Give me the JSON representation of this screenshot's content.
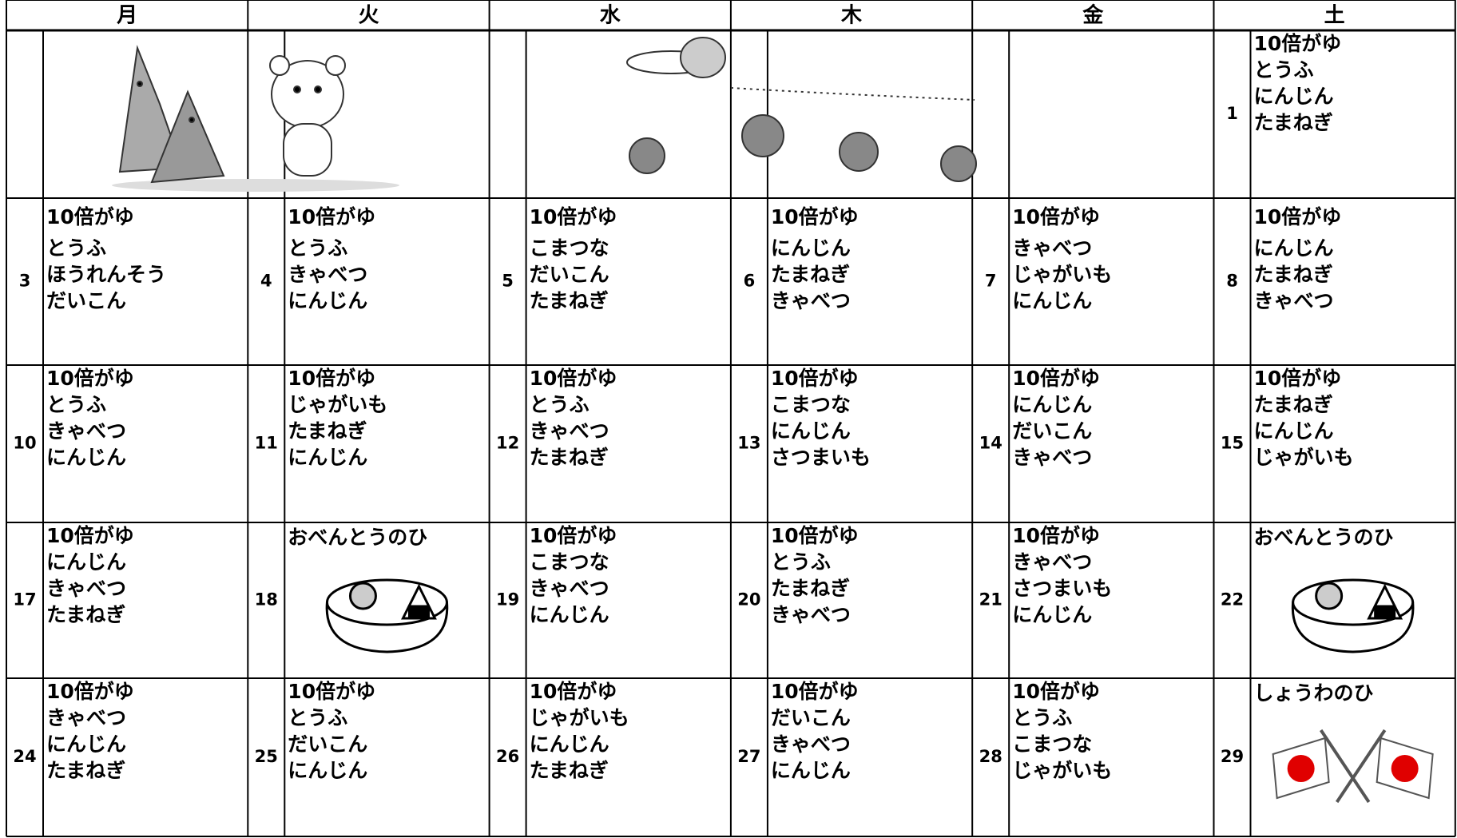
{
  "header": [
    "月",
    "火",
    "水",
    "木",
    "金",
    "土"
  ],
  "weeks": [
    [
      null,
      null,
      null,
      null,
      null,
      {
        "date": 1,
        "items": [
          "10倍がゆ",
          "とうふ",
          "にんじん",
          "たまねぎ"
        ]
      }
    ],
    [
      {
        "date": 3,
        "items": [
          "10倍がゆ",
          "とうふ",
          "ほうれんそう",
          "だいこん"
        ]
      },
      {
        "date": 4,
        "items": [
          "10倍がゆ",
          "とうふ",
          "きゃべつ",
          "にんじん"
        ]
      },
      {
        "date": 5,
        "items": [
          "10倍がゆ",
          "こまつな",
          "だいこん",
          "たまねぎ"
        ]
      },
      {
        "date": 6,
        "items": [
          "10倍がゆ",
          "にんじん",
          "たまねぎ",
          "きゃべつ"
        ]
      },
      {
        "date": 7,
        "items": [
          "10倍がゆ",
          "きゃべつ",
          "じゃがいも",
          "にんじん"
        ]
      },
      {
        "date": 8,
        "items": [
          "10倍がゆ",
          "にんじん",
          "たまねぎ",
          "きゃべつ"
        ]
      }
    ],
    [
      {
        "date": 10,
        "items": [
          "10倍がゆ",
          "とうふ",
          "きゃべつ",
          "にんじん"
        ]
      },
      {
        "date": 11,
        "items": [
          "10倍がゆ",
          "じゃがいも",
          "たまねぎ",
          "にんじん"
        ]
      },
      {
        "date": 12,
        "items": [
          "10倍がゆ",
          "とうふ",
          "きゃべつ",
          "たまねぎ"
        ]
      },
      {
        "date": 13,
        "items": [
          "10倍がゆ",
          "こまつな",
          "にんじん",
          "さつまいも"
        ]
      },
      {
        "date": 14,
        "items": [
          "10倍がゆ",
          "にんじん",
          "だいこん",
          "きゃべつ"
        ]
      },
      {
        "date": 15,
        "items": [
          "10倍がゆ",
          "たまねぎ",
          "にんじん",
          "じゃがいも"
        ]
      }
    ],
    [
      {
        "date": 17,
        "items": [
          "10倍がゆ",
          "にんじん",
          "きゃべつ",
          "たまねぎ"
        ]
      },
      {
        "date": 18,
        "event": "おべんとうのひ"
      },
      {
        "date": 19,
        "items": [
          "10倍がゆ",
          "こまつな",
          "きゃべつ",
          "にんじん"
        ]
      },
      {
        "date": 20,
        "items": [
          "10倍がゆ",
          "とうふ",
          "たまねぎ",
          "きゃべつ"
        ]
      },
      {
        "date": 21,
        "items": [
          "10倍がゆ",
          "きゃべつ",
          "さつまいも",
          "にんじん"
        ]
      },
      {
        "date": 22,
        "event": "おべんとうのひ"
      }
    ],
    [
      {
        "date": 24,
        "items": [
          "10倍がゆ",
          "きゃべつ",
          "にんじん",
          "たまねぎ"
        ]
      },
      {
        "date": 25,
        "items": [
          "10倍がゆ",
          "とうふ",
          "だいこん",
          "にんじん"
        ]
      },
      {
        "date": 26,
        "items": [
          "10倍がゆ",
          "じゃがいも",
          "にんじん",
          "たまねぎ"
        ]
      },
      {
        "date": 27,
        "items": [
          "10倍がゆ",
          "だいこん",
          "きゃべつ",
          "にんじん"
        ]
      },
      {
        "date": 28,
        "items": [
          "10倍がゆ",
          "とうふ",
          "こまつな",
          "じゃがいも"
        ]
      },
      {
        "date": 29,
        "event": "しょうわのひ"
      }
    ]
  ]
}
